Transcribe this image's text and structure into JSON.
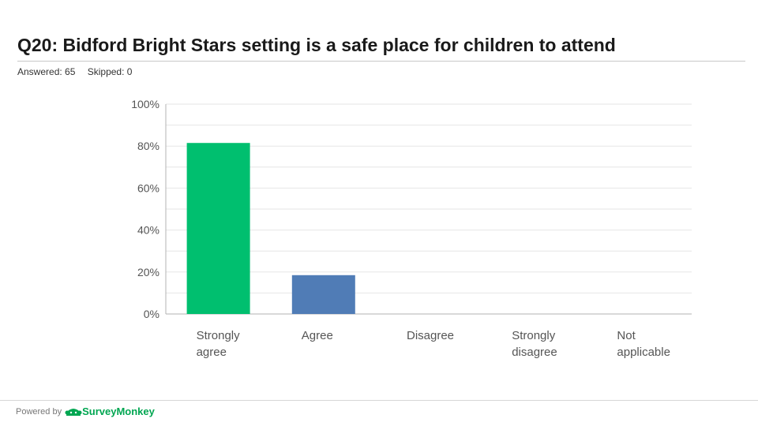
{
  "page": {
    "title": "Q20: Bidford Bright Stars setting is a safe place for children to attend",
    "answered": "Answered: 65",
    "skipped": "Skipped: 0"
  },
  "footer": {
    "powered_by": "Powered by",
    "brand": "SurveyMonkey"
  },
  "colors": {
    "strongly_agree": "#00bf6f",
    "agree": "#507cb6",
    "gridline": "#e6e6e6",
    "axis": "#b3b3b3",
    "brand": "#00a651"
  },
  "icons": {
    "brand_logo": "surveymonkey-logo-icon"
  },
  "chart_data": {
    "type": "bar",
    "title": "",
    "xlabel": "",
    "ylabel": "",
    "categories": [
      [
        "Strongly",
        "agree"
      ],
      [
        "Agree"
      ],
      [
        "Disagree"
      ],
      [
        "Strongly",
        "disagree"
      ],
      [
        "Not",
        "applicable"
      ]
    ],
    "values": [
      81.5,
      18.5,
      0,
      0,
      0
    ],
    "ylim": [
      0,
      100
    ],
    "yticks": [
      "0%",
      "20%",
      "40%",
      "60%",
      "80%",
      "100%"
    ],
    "grid": true,
    "legend": "none"
  }
}
